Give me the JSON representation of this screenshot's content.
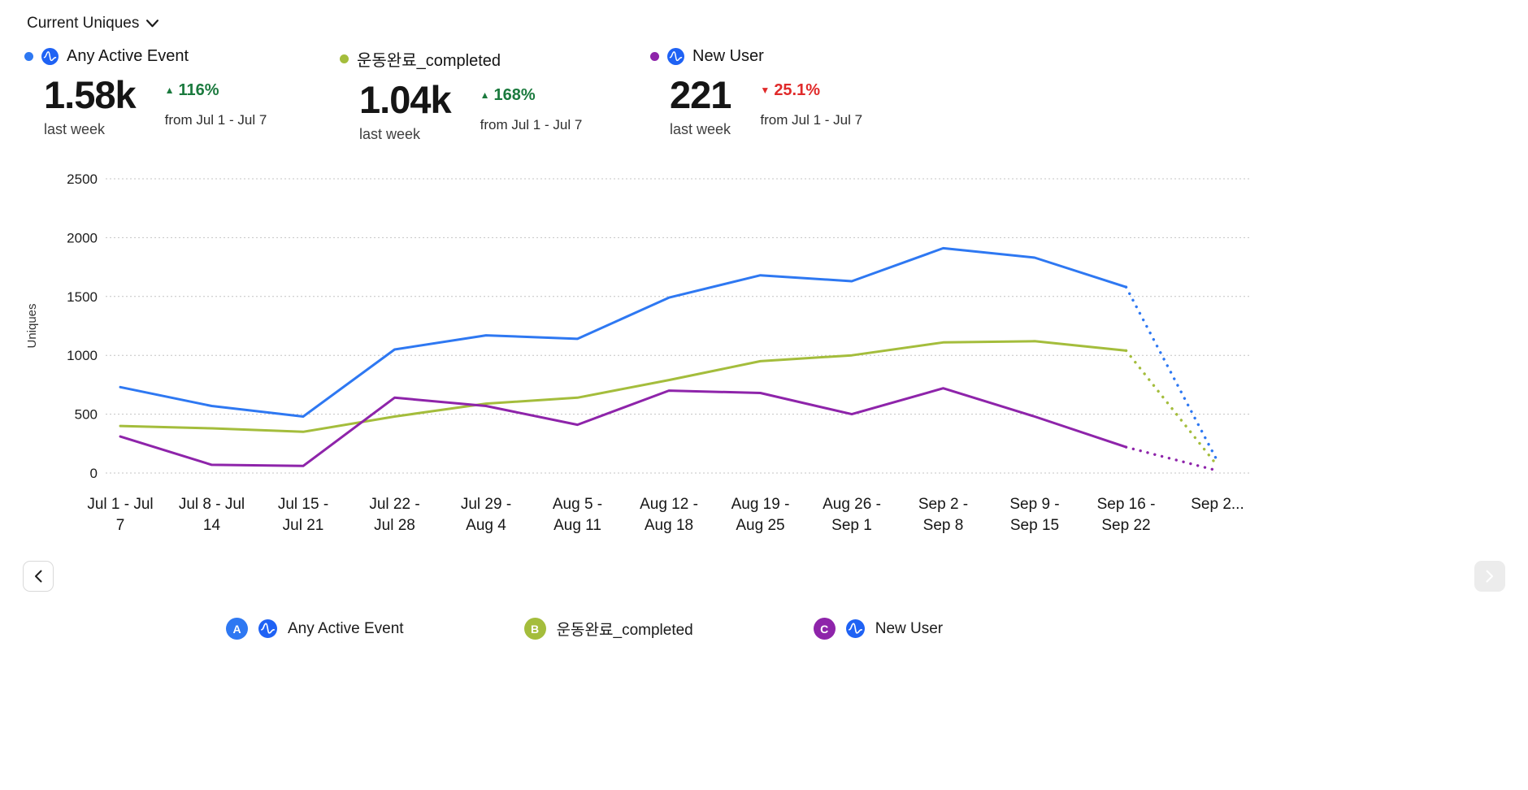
{
  "header": {
    "title": "Current Uniques"
  },
  "stats": [
    {
      "label": "Any Active Event",
      "dot_color": "#2e78f2",
      "value": "1.58k",
      "period": "last week",
      "delta_arrow": "▲",
      "delta": "116%",
      "delta_color": "#1b7a3e",
      "compare": "from Jul 1 - Jul 7"
    },
    {
      "label": "운동완료_completed",
      "dot_color": "#a4bd3c",
      "value": "1.04k",
      "period": "last week",
      "delta_arrow": "▲",
      "delta": "168%",
      "delta_color": "#1b7a3e",
      "compare": "from Jul 1 - Jul 7"
    },
    {
      "label": "New User",
      "dot_color": "#8e24aa",
      "value": "221",
      "period": "last week",
      "delta_arrow": "▼",
      "delta": "25.1%",
      "delta_color": "#e02a2a",
      "compare": "from Jul 1 - Jul 7"
    }
  ],
  "chart_data": {
    "type": "line",
    "title": "Current Uniques",
    "xlabel": "",
    "ylabel": "Uniques",
    "ylim": [
      0,
      2500
    ],
    "yticks": [
      0,
      500,
      1000,
      1500,
      2000,
      2500
    ],
    "grid": "dotted-horizontal",
    "legend_position": "bottom",
    "categories": [
      "Jul 1 - Jul 7",
      "Jul 8 - Jul 14",
      "Jul 15 - Jul 21",
      "Jul 22 - Jul 28",
      "Jul 29 - Aug 4",
      "Aug 5 - Aug 11",
      "Aug 12 - Aug 18",
      "Aug 19 - Aug 25",
      "Aug 26 - Sep 1",
      "Sep 2 - Sep 8",
      "Sep 9 - Sep 15",
      "Sep 16 - Sep 22",
      "Sep 2..."
    ],
    "tick_lines": [
      [
        "Jul 1 - Jul",
        "7"
      ],
      [
        "Jul 8 - Jul",
        "14"
      ],
      [
        "Jul 15 -",
        "Jul 21"
      ],
      [
        "Jul 22 -",
        "Jul 28"
      ],
      [
        "Jul 29 -",
        "Aug 4"
      ],
      [
        "Aug 5 -",
        "Aug 11"
      ],
      [
        "Aug 12 -",
        "Aug 18"
      ],
      [
        "Aug 19 -",
        "Aug 25"
      ],
      [
        "Aug 26 -",
        "Sep 1"
      ],
      [
        "Sep 2 -",
        "Sep 8"
      ],
      [
        "Sep 9 -",
        "Sep 15"
      ],
      [
        "Sep 16 -",
        "Sep 22"
      ],
      [
        "Sep 2..."
      ]
    ],
    "series": [
      {
        "name": "Any Active Event",
        "color": "#2e78f2",
        "last_segment": "dotted",
        "values": [
          730,
          570,
          480,
          1050,
          1170,
          1140,
          1490,
          1680,
          1630,
          1910,
          1830,
          1580,
          100
        ]
      },
      {
        "name": "운동완료_completed",
        "color": "#a4bd3c",
        "last_segment": "dotted",
        "values": [
          400,
          380,
          350,
          480,
          590,
          640,
          790,
          950,
          1000,
          1110,
          1120,
          1040,
          60
        ]
      },
      {
        "name": "New User",
        "color": "#8e24aa",
        "last_segment": "dotted",
        "values": [
          310,
          70,
          60,
          640,
          570,
          410,
          700,
          680,
          500,
          720,
          480,
          220,
          20
        ]
      }
    ]
  },
  "pagination": {
    "prev": "chevron-left",
    "next": "chevron-right"
  },
  "legend": [
    {
      "badge": "A",
      "color": "#2e78f2",
      "label": "Any Active Event"
    },
    {
      "badge": "B",
      "color": "#a4bd3c",
      "label": "운동완료_completed"
    },
    {
      "badge": "C",
      "color": "#8e24aa",
      "label": "New User"
    }
  ],
  "brand": {
    "amplitude_icon_color": "#1f62f4"
  }
}
